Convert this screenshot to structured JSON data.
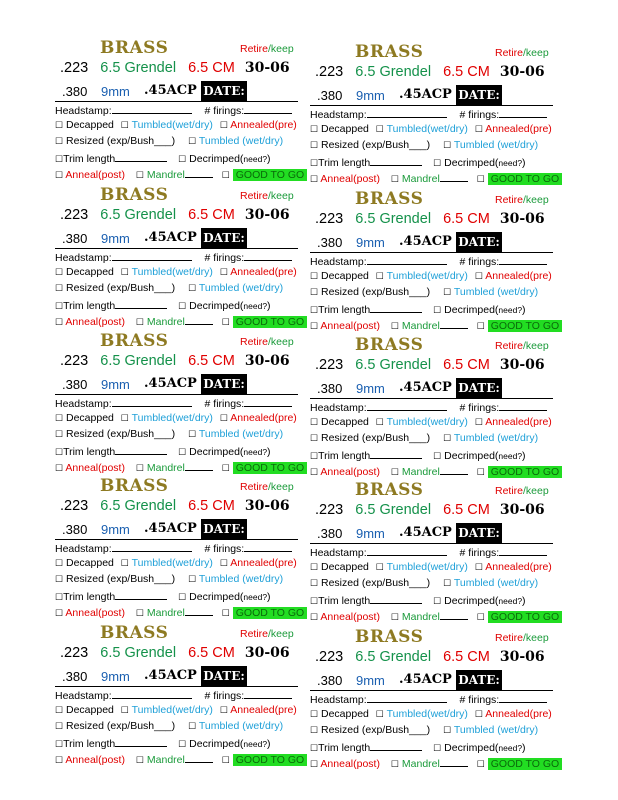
{
  "label": {
    "brass": "BRASS",
    "retire": "Retire",
    "slash_keep": "/keep",
    "cal_223": ".223",
    "cal_grendel": "6.5 Grendel",
    "cal_65cm": "6.5 CM",
    "cal_3006": "30-06",
    "cal_380": ".380",
    "cal_9mm": "9mm",
    "cal_45": ".45ACP",
    "date": "DATE:",
    "headstamp": "Headstamp:",
    "firings": "# firings:",
    "decapped": "Decapped",
    "tumbled": "Tumbled(wet/dry)",
    "annealed": "Annealed(pre)",
    "resized": "Resized (exp/Bush___)",
    "tumbled2": "Tumbled (wet/dry)",
    "trim": "Trim length",
    "decrimped": "Decrimped(",
    "need": "need?",
    "close_paren": ")",
    "anneal_post": "Anneal(post)",
    "mandrel": "Mandrel",
    "good": "GOOD TO GO",
    "checkbox": "☐"
  }
}
